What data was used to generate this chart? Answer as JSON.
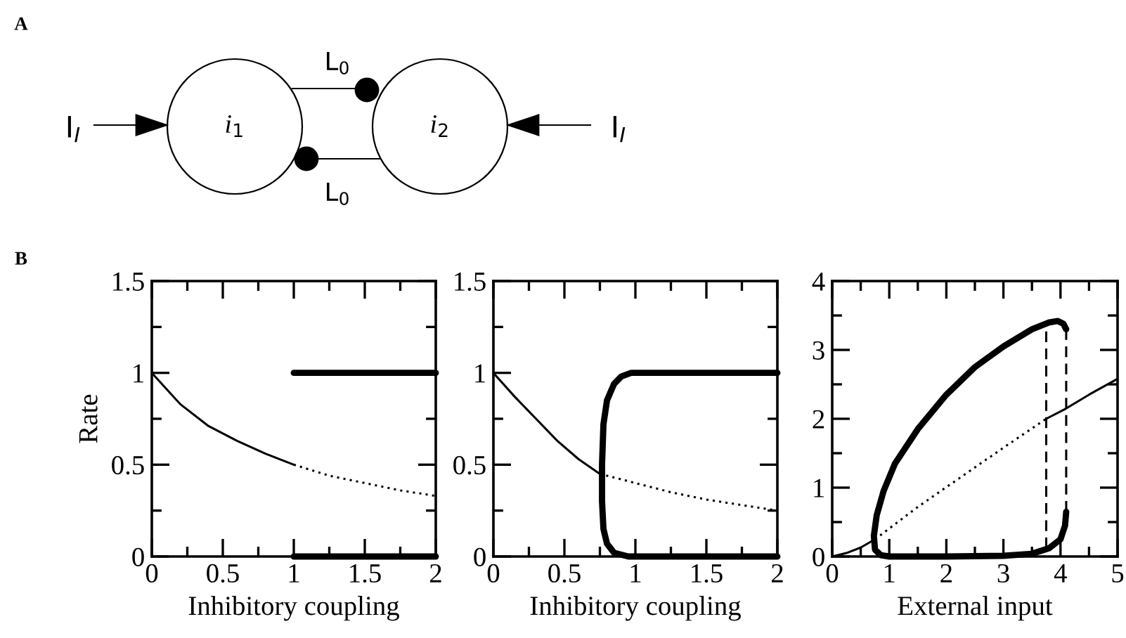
{
  "chart_data": [
    {
      "type": "other",
      "annotations": [
        "A",
        "I$_{I}$",
        "i$_{1}$",
        "i$_{2}$",
        "L$_{0}$",
        "L$_{0}$",
        "I$_{I}$",
        "B"
      ]
    },
    {
      "type": "line",
      "xlabel": "Inhibitory coupling",
      "ylabel": "Rate",
      "xlim": [
        0,
        2
      ],
      "ylim": [
        0,
        1.5
      ],
      "xticks": [
        0,
        0.5,
        1,
        1.5,
        2
      ],
      "yticks": [
        0,
        0.5,
        1,
        1.5
      ],
      "grid": false,
      "series": [
        {
          "color": "#000000",
          "line_style": "solid",
          "x": [
            0,
            0.2,
            0.4,
            0.6,
            0.8,
            1
          ],
          "values": [
            1,
            0.83,
            0.71,
            0.63,
            0.56,
            0.5
          ]
        },
        {
          "color": "#000000",
          "line_style": "dotted",
          "x": [
            1,
            1.25,
            1.5,
            1.75,
            2
          ],
          "values": [
            0.5,
            0.44,
            0.4,
            0.36,
            0.33
          ]
        },
        {
          "color": "#000000",
          "line_style": "solid",
          "x": [
            1,
            2
          ],
          "values": [
            1,
            1
          ]
        },
        {
          "color": "#000000",
          "line_style": "solid",
          "x": [
            1,
            2
          ],
          "values": [
            0,
            0
          ]
        }
      ]
    },
    {
      "type": "line",
      "xlabel": "Inhibitory coupling",
      "xlim": [
        0,
        2
      ],
      "ylim": [
        0,
        1.5
      ],
      "xticks": [
        0,
        0.5,
        1,
        1.5,
        2
      ],
      "yticks": [
        0,
        0.5,
        1,
        1.5
      ],
      "grid": false,
      "series": [
        {
          "color": "#000000",
          "line_style": "solid",
          "x": [
            0,
            0.15,
            0.3,
            0.45,
            0.6,
            0.75
          ],
          "values": [
            1,
            0.87,
            0.75,
            0.63,
            0.53,
            0.45
          ]
        },
        {
          "color": "#000000",
          "line_style": "dotted",
          "x": [
            0.75,
            1,
            1.25,
            1.5,
            1.75,
            2
          ],
          "values": [
            0.45,
            0.4,
            0.35,
            0.31,
            0.28,
            0.25
          ]
        },
        {
          "color": "#000000",
          "line_style": "solid",
          "x": [
            2,
            0.97,
            0.9,
            0.85,
            0.8,
            0.775,
            0.765,
            0.765,
            0.775,
            0.8,
            0.85,
            0.95,
            2
          ],
          "values": [
            1,
            1,
            0.98,
            0.94,
            0.85,
            0.72,
            0.5,
            0.3,
            0.15,
            0.07,
            0.02,
            0,
            0
          ]
        }
      ]
    },
    {
      "type": "line",
      "xlabel": "External input",
      "xlim": [
        0,
        5
      ],
      "ylim": [
        0,
        4
      ],
      "xticks": [
        0,
        1,
        2,
        3,
        4,
        5
      ],
      "yticks": [
        0,
        1,
        2,
        3,
        4
      ],
      "grid": false,
      "series": [
        {
          "color": "#000000",
          "line_style": "solid",
          "x": [
            0,
            0.25,
            0.5,
            0.75
          ],
          "values": [
            0,
            0.05,
            0.13,
            0.25
          ]
        },
        {
          "color": "#000000",
          "line_style": "dotted",
          "x": [
            0.75,
            1.5,
            2.25,
            3,
            3.75
          ],
          "values": [
            0.25,
            0.72,
            1.15,
            1.58,
            2.0
          ]
        },
        {
          "color": "#000000",
          "line_style": "solid",
          "x": [
            3.75,
            4.1,
            4.5,
            5
          ],
          "values": [
            2.0,
            2.15,
            2.35,
            2.58
          ]
        },
        {
          "color": "#000000",
          "line_style": "solid",
          "x": [
            4.1,
            4.08,
            4.0,
            3.8,
            3.5,
            3,
            2,
            1,
            0.85,
            0.75,
            0.73,
            0.78,
            0.9,
            1.1,
            1.5,
            2,
            2.5,
            3,
            3.5,
            3.8,
            3.95,
            4.05,
            4.1
          ],
          "values": [
            0.65,
            0.45,
            0.25,
            0.12,
            0.04,
            0.01,
            0,
            0,
            0.02,
            0.1,
            0.3,
            0.6,
            0.95,
            1.35,
            1.85,
            2.35,
            2.75,
            3.05,
            3.3,
            3.4,
            3.42,
            3.38,
            3.3
          ]
        },
        {
          "color": "#000000",
          "line_style": "dashed",
          "x": [
            3.75,
            3.75
          ],
          "values": [
            0.12,
            3.4
          ]
        },
        {
          "color": "#000000",
          "line_style": "dashed",
          "x": [
            4.1,
            4.1
          ],
          "values": [
            0.65,
            3.3
          ]
        }
      ]
    }
  ]
}
